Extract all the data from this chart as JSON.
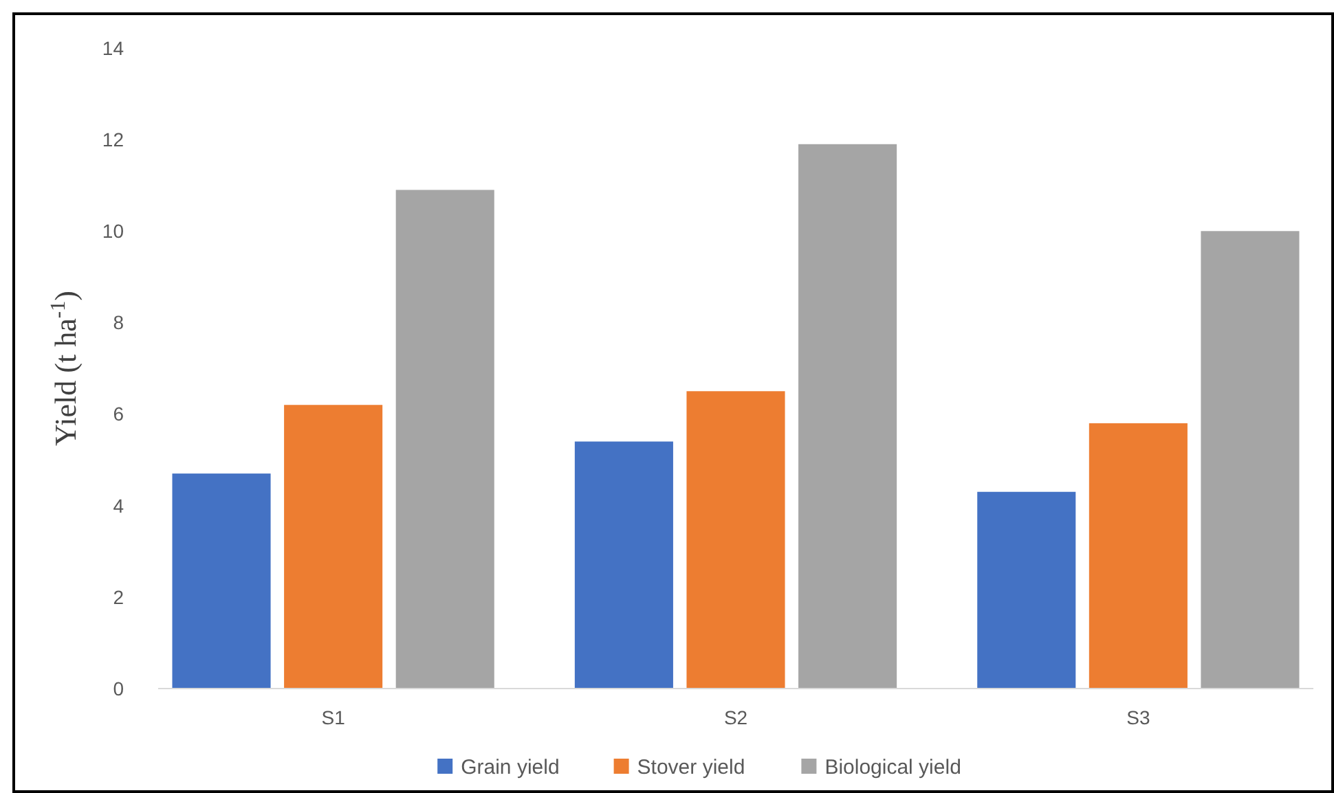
{
  "chart_data": {
    "type": "bar",
    "ylabel": "Yield (t ha$^{-1}$)",
    "categories": [
      "S1",
      "S2",
      "S3"
    ],
    "series": [
      {
        "name": "Grain yield",
        "color": "#4472c4",
        "values": [
          4.7,
          5.4,
          4.3
        ]
      },
      {
        "name": "Stover yield",
        "color": "#ed7d31",
        "values": [
          6.2,
          6.5,
          5.8
        ]
      },
      {
        "name": "Biological yield",
        "color": "#a5a5a5",
        "values": [
          10.9,
          11.9,
          10.0
        ]
      }
    ],
    "ylim": [
      0,
      14
    ],
    "yticks": [
      0,
      2,
      4,
      6,
      8,
      10,
      12,
      14
    ],
    "grid": false,
    "legend": "bottom"
  }
}
